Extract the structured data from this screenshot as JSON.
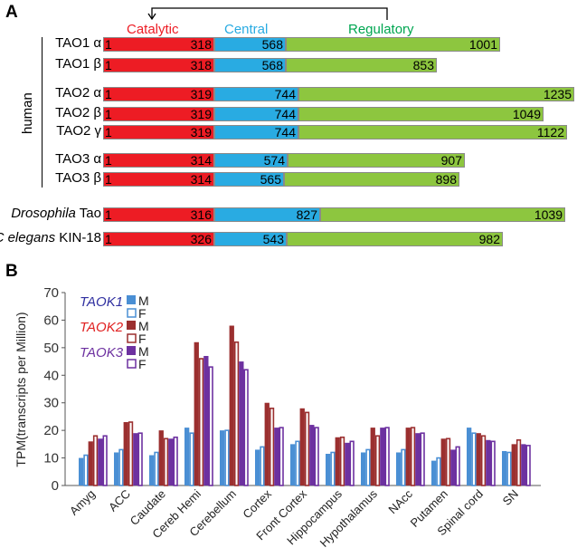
{
  "panel_a": {
    "label": "A",
    "domains": {
      "catalytic": "Catalytic",
      "central": "Central",
      "regulatory": "Regulatory"
    },
    "group_label": "human",
    "proteins": [
      {
        "name": "TAO1 α",
        "start": "1",
        "catalytic_end": "318",
        "central_end": "568",
        "end": "1001"
      },
      {
        "name": "TAO1 β",
        "start": "1",
        "catalytic_end": "318",
        "central_end": "568",
        "end": "853"
      },
      {
        "name": "TAO2 α",
        "start": "1",
        "catalytic_end": "319",
        "central_end": "744",
        "end": "1235"
      },
      {
        "name": "TAO2 β",
        "start": "1",
        "catalytic_end": "319",
        "central_end": "744",
        "end": "1049"
      },
      {
        "name": "TAO2 γ",
        "start": "1",
        "catalytic_end": "319",
        "central_end": "744",
        "end": "1122"
      },
      {
        "name": "TAO3 α",
        "start": "1",
        "catalytic_end": "314",
        "central_end": "574",
        "end": "907"
      },
      {
        "name": "TAO3 β",
        "start": "1",
        "catalytic_end": "314",
        "central_end": "565",
        "end": "898"
      },
      {
        "name_italic": "Drosophila",
        "name": " Tao",
        "start": "1",
        "catalytic_end": "316",
        "central_end": "827",
        "end": "1039"
      },
      {
        "name_italic": "C elegans",
        "name": " KIN-18",
        "start": "1",
        "catalytic_end": "326",
        "central_end": "543",
        "end": "982"
      }
    ]
  },
  "panel_b": {
    "label": "B"
  },
  "colors": {
    "taok1": "#4a8fd4",
    "taok2": "#9b2f2f",
    "taok3": "#6d31a0",
    "catalytic": "#ed1c24",
    "central": "#29abe2",
    "regulatory": "#8dc63f"
  },
  "chart_data": {
    "type": "bar",
    "title": "",
    "xlabel": "",
    "ylabel": "TPM(transcripts per Million)",
    "ylim": [
      0,
      70
    ],
    "yticks": [
      "0",
      "10",
      "20",
      "30",
      "40",
      "50",
      "60",
      "70"
    ],
    "categories": [
      "Amyg",
      "ACC",
      "Caudate",
      "Cereb Hemi",
      "Cerebellum",
      "Cortex",
      "Front Cortex",
      "Hippocampus",
      "Hypothalamus",
      "NAcc",
      "Putamen",
      "Spinal cord",
      "SN"
    ],
    "legend": {
      "placement": "top-left",
      "genes": [
        "TAOK1",
        "TAOK2",
        "TAOK3"
      ],
      "sexes": [
        "M",
        "F"
      ]
    },
    "series": [
      {
        "name": "TAOK1 M",
        "values": [
          10,
          12,
          11,
          21,
          20,
          13,
          15,
          11.5,
          12,
          12,
          9,
          21,
          12.5
        ]
      },
      {
        "name": "TAOK1 F",
        "values": [
          11,
          13,
          12,
          19,
          20,
          14,
          16,
          12,
          13,
          13,
          10,
          19,
          12
        ]
      },
      {
        "name": "TAOK2 M",
        "values": [
          16,
          23,
          20,
          52,
          58,
          30,
          28,
          17.5,
          21,
          21,
          17,
          19,
          15
        ]
      },
      {
        "name": "TAOK2 F",
        "values": [
          18,
          23,
          17,
          46,
          52,
          28,
          26.5,
          17.5,
          18,
          21,
          17,
          18,
          16.5
        ]
      },
      {
        "name": "TAOK3 M",
        "values": [
          17,
          19,
          17,
          47,
          45,
          21,
          22,
          15.5,
          21,
          19,
          13,
          16.5,
          15
        ]
      },
      {
        "name": "TAOK3 F",
        "values": [
          18,
          19,
          17.5,
          43,
          42,
          21,
          21,
          16,
          21,
          19,
          14,
          16,
          14.5
        ]
      }
    ]
  }
}
